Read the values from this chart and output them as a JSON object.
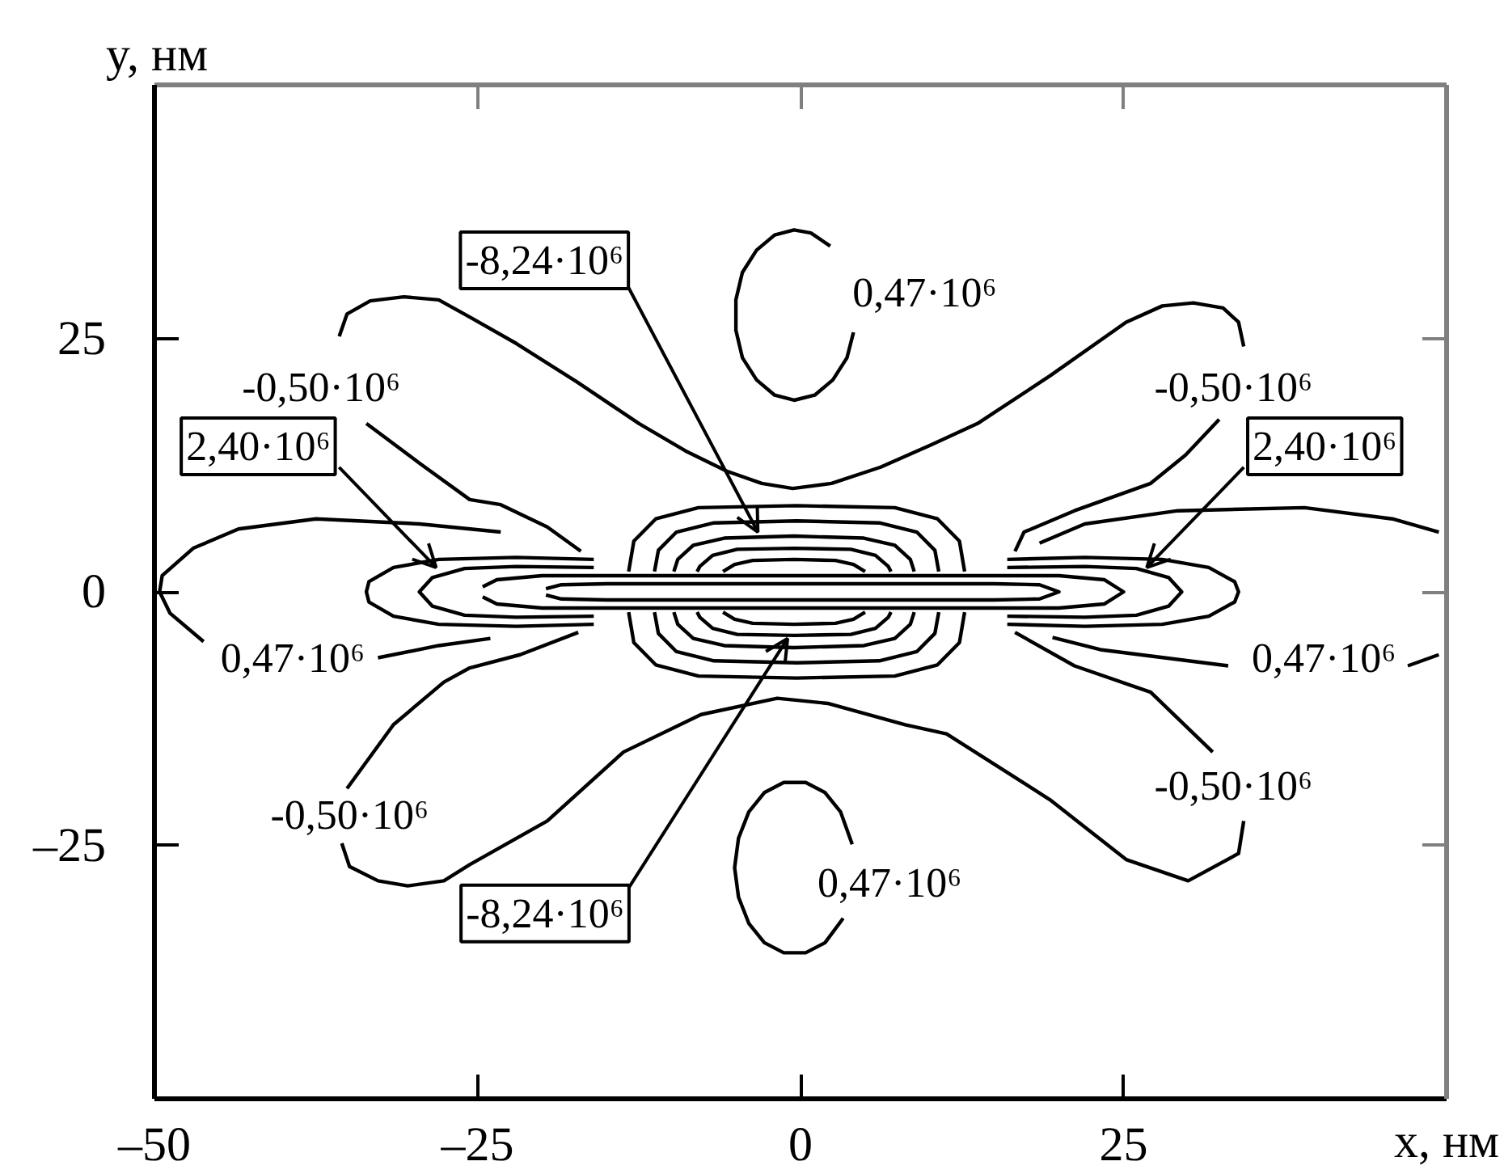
{
  "chart_data": {
    "type": "line",
    "xlabel": "x, нм",
    "ylabel": "y, нм",
    "xlim": [
      -50,
      50
    ],
    "ylim": [
      -50,
      50
    ],
    "xticks": [
      {
        "value": -50,
        "label": "–50"
      },
      {
        "value": -25,
        "label": "–25"
      },
      0,
      25
    ],
    "yticks": [
      {
        "value": -25,
        "label": "–25"
      },
      0,
      25
    ],
    "grid": false,
    "marker": "none",
    "line_style": "solid",
    "series": [
      {
        "color": "#000000",
        "x": [
          -17.0,
          -19.6,
          -23.2,
          -25.6,
          -29.5,
          -33.6,
          null,
          -35.7,
          -35.1,
          -33.3,
          -30.7,
          -28.0,
          -25.6,
          -22.0,
          -17.3,
          -12.5,
          -8.9,
          -5.7,
          -3.0,
          -0.6,
          2.4,
          6.2,
          10.1,
          13.7,
          19.3,
          25.2,
          28.0,
          30.4,
          32.7,
          33.9,
          34.3,
          null,
          32.4,
          29.8,
          27.1,
          21.2,
          17.3,
          16.6
        ],
        "values": [
          4.0,
          6.4,
          8.6,
          9.1,
          12.7,
          16.6,
          null,
          25.2,
          27.4,
          28.7,
          29.1,
          28.8,
          27.1,
          24.5,
          20.7,
          16.6,
          13.9,
          11.9,
          10.7,
          10.2,
          10.7,
          12.3,
          14.5,
          16.6,
          21.3,
          26.6,
          28.2,
          28.5,
          28.0,
          26.6,
          24.2,
          null,
          17.0,
          13.5,
          10.7,
          8.0,
          5.9,
          4.0
        ]
      },
      {
        "color": "#000000",
        "x": [
          -17.2,
          -21.7,
          -25.6,
          -27.6,
          -31.5,
          -35.1,
          null,
          -35.5,
          -34.9,
          -32.7,
          -30.4,
          -27.6,
          -25.6,
          -19.6,
          -13.7,
          -7.7,
          -1.8,
          2.1,
          8.1,
          11.3,
          19.3,
          25.2,
          30.0,
          33.9,
          34.3,
          null,
          31.9,
          27.1,
          21.2,
          16.6
        ],
        "values": [
          -4.0,
          -6.2,
          -7.5,
          -8.9,
          -13.1,
          -19.4,
          null,
          -24.8,
          -27.1,
          -28.5,
          -29.0,
          -28.5,
          -26.9,
          -22.6,
          -15.8,
          -12.1,
          -10.5,
          -11.0,
          -13.1,
          -14.0,
          -20.5,
          -26.4,
          -28.5,
          -25.8,
          -22.6,
          null,
          -15.8,
          -9.9,
          -7.3,
          -4.0
        ]
      },
      {
        "color": "#000000",
        "x": [
          -23.2,
          -29.5,
          -37.5,
          -43.5,
          -47.0,
          -49.4,
          -49.6,
          -48.8,
          -46.2,
          null,
          -32.7,
          -28.0,
          -24.0
        ],
        "values": [
          5.9,
          6.7,
          7.2,
          6.2,
          4.3,
          1.6,
          0,
          -2.1,
          -4.9,
          null,
          -6.5,
          -5.3,
          -4.6
        ]
      },
      {
        "color": "#000000",
        "x": [
          18.5,
          22.0,
          29.2,
          39.0,
          45.8,
          49.4,
          null,
          49.4,
          47.0,
          null,
          33.1,
          23.2,
          19.5
        ],
        "values": [
          4.8,
          6.7,
          8.0,
          8.3,
          7.2,
          5.9,
          null,
          -6.2,
          -7.3,
          null,
          -7.3,
          -5.7,
          -4.5
        ]
      },
      {
        "color": "#000000",
        "x": [
          2.3,
          0.8,
          -0.5,
          -2.0,
          -3.4,
          -4.5,
          -5.0,
          -5.0,
          -4.5,
          -3.4,
          -2.0,
          -0.5,
          1.1,
          2.5,
          3.6,
          4.1
        ],
        "values": [
          34.1,
          35.4,
          35.7,
          35.2,
          33.7,
          31.5,
          28.8,
          25.8,
          23.1,
          20.9,
          19.4,
          18.9,
          19.4,
          20.9,
          23.1,
          25.6
        ]
      },
      {
        "color": "#000000",
        "x": [
          4.0,
          3.1,
          1.9,
          0.4,
          -1.3,
          -2.8,
          -4.0,
          -4.8,
          -5.1,
          -4.8,
          -4.0,
          -2.8,
          -1.3,
          0.4,
          1.9,
          3.3
        ],
        "values": [
          -24.9,
          -21.7,
          -19.8,
          -18.8,
          -18.8,
          -19.8,
          -21.7,
          -24.3,
          -27.2,
          -30.1,
          -32.7,
          -34.6,
          -35.6,
          -35.6,
          -34.6,
          -32.2
        ]
      },
      {
        "color": "#000000",
        "x": [
          12.7,
          12.3,
          10.6,
          7.3,
          -0.3,
          -7.9,
          -11.2,
          -12.9,
          -13.3,
          null,
          12.7,
          12.3,
          10.6,
          7.3,
          -0.3,
          -7.9,
          -11.2,
          -12.9,
          -13.3
        ],
        "values": [
          2.0,
          5.0,
          7.2,
          8.3,
          8.5,
          8.3,
          7.2,
          5.0,
          2.0,
          null,
          -2.0,
          -5.0,
          -7.2,
          -8.3,
          -8.5,
          -8.3,
          -7.2,
          -5.0,
          -2.0
        ]
      },
      {
        "color": "#000000",
        "x": [
          10.7,
          10.4,
          9.0,
          6.1,
          -0.3,
          -6.7,
          -9.6,
          -11.0,
          -11.3,
          null,
          10.7,
          10.4,
          9.0,
          6.1,
          -0.3,
          -6.7,
          -9.6,
          -11.0,
          -11.3
        ],
        "values": [
          2.0,
          4.1,
          5.9,
          6.8,
          7.0,
          6.8,
          5.9,
          4.1,
          2.0,
          null,
          -2.0,
          -4.1,
          -5.9,
          -6.8,
          -7.0,
          -6.8,
          -5.9,
          -4.1,
          -2.0
        ]
      },
      {
        "color": "#000000",
        "x": [
          8.8,
          8.5,
          7.3,
          4.9,
          -0.5,
          -5.9,
          -8.3,
          -9.5,
          -9.8,
          null,
          8.8,
          8.5,
          7.3,
          4.9,
          -0.5,
          -5.9,
          -8.3,
          -9.5,
          -9.8
        ],
        "values": [
          2.0,
          3.2,
          4.6,
          5.3,
          5.5,
          5.3,
          4.6,
          3.2,
          2.0,
          null,
          -2.0,
          -3.2,
          -4.6,
          -5.3,
          -5.5,
          -5.3,
          -4.6,
          -3.2,
          -2.0
        ]
      },
      {
        "color": "#000000",
        "x": [
          7.0,
          6.8,
          5.8,
          3.9,
          -0.5,
          -4.9,
          -6.8,
          -7.8,
          -8.0,
          null,
          7.0,
          6.8,
          5.8,
          3.9,
          -0.5,
          -4.9,
          -6.8,
          -7.8,
          -8.0
        ],
        "values": [
          2.0,
          2.5,
          3.6,
          4.2,
          4.3,
          4.2,
          3.6,
          2.5,
          2.0,
          null,
          -2.0,
          -2.5,
          -3.6,
          -4.2,
          -4.3,
          -4.2,
          -3.6,
          -2.5,
          -2.0
        ]
      },
      {
        "color": "#000000",
        "x": [
          5.0,
          4.1,
          2.7,
          -0.5,
          -3.7,
          -5.1,
          -6.0,
          null,
          5.0,
          4.1,
          2.7,
          -0.5,
          -3.7,
          -5.1,
          -6.0
        ],
        "values": [
          2.0,
          2.7,
          3.1,
          3.2,
          3.1,
          2.7,
          2.0,
          null,
          -2.0,
          -2.7,
          -3.1,
          -3.2,
          -3.1,
          -2.7,
          -2.0
        ]
      },
      {
        "color": "#000000",
        "x": [
          -24.6,
          -23.5,
          -20,
          -10,
          0,
          10,
          20,
          23.5,
          25,
          23.5,
          20,
          10,
          0,
          -10,
          -20,
          -23.5,
          -24.6
        ],
        "values": [
          0.5,
          1.2,
          1.6,
          1.6,
          1.6,
          1.6,
          1.6,
          1.2,
          0,
          -1.2,
          -1.6,
          -1.6,
          -1.6,
          -1.6,
          -1.6,
          -1.2,
          -0.5
        ]
      },
      {
        "color": "#000000",
        "x": [
          -19.7,
          -18.5,
          -15,
          0,
          15,
          18.5,
          20,
          18.5,
          15,
          0,
          -15,
          -18.5,
          -19.7
        ],
        "values": [
          0.3,
          0.7,
          0.8,
          0.8,
          0.8,
          0.7,
          0,
          -0.7,
          -0.8,
          -0.8,
          -0.8,
          -0.7,
          -0.3
        ]
      },
      {
        "color": "#000000",
        "x": [
          -16,
          -22,
          -28,
          -31.5,
          -33.4,
          -33.6,
          -33.4,
          -31.5,
          -28,
          -22,
          -16
        ],
        "values": [
          3.2,
          3.4,
          3.2,
          2.4,
          1.0,
          0,
          -1.0,
          -2.4,
          -3.2,
          -3.4,
          -3.2
        ]
      },
      {
        "color": "#000000",
        "x": [
          -16,
          -22,
          -26,
          -28.5,
          -29.5,
          -28.5,
          -26,
          -22,
          -16
        ],
        "values": [
          2.4,
          2.5,
          2.3,
          1.4,
          0,
          -1.4,
          -2.3,
          -2.5,
          -2.4
        ]
      },
      {
        "color": "#000000",
        "x": [
          16,
          22,
          28,
          31.6,
          33.6,
          33.9,
          33.6,
          31.6,
          28,
          22,
          16
        ],
        "values": [
          3.2,
          3.4,
          3.2,
          2.4,
          1.0,
          0,
          -1.0,
          -2.4,
          -3.2,
          -3.4,
          -3.2
        ]
      },
      {
        "color": "#000000",
        "x": [
          16,
          22,
          26,
          28.5,
          29.5,
          28.5,
          26,
          22,
          16
        ],
        "values": [
          2.4,
          2.5,
          2.3,
          1.4,
          0,
          -1.4,
          -2.3,
          -2.5,
          -2.4
        ]
      }
    ],
    "annotations": [
      {
        "text": "-8,24·10⁶",
        "x": -3.3,
        "y": 5.9
      },
      "0,47·10⁶",
      "-0,50·10⁶",
      "-0,50·10⁶",
      {
        "text": "2,40·10⁶",
        "x": -28.2,
        "y": 2.4
      },
      {
        "text": "2,40·10⁶",
        "x": 26.8,
        "y": 2.4
      },
      "0,47·10⁶",
      "0,47·10⁶",
      "-0,50·10⁶",
      "-0,50·10⁶",
      "0,47·10⁶",
      {
        "text": "-8,24·10⁶",
        "x": -1.0,
        "y": -4.6
      }
    ]
  }
}
